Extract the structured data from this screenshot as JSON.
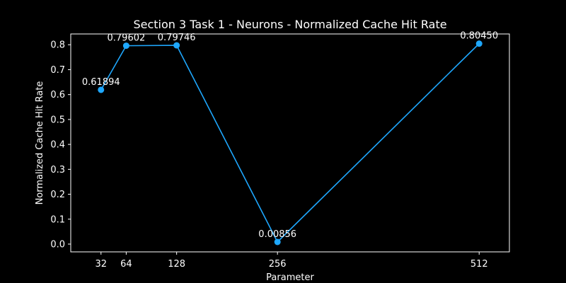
{
  "chart_data": {
    "type": "line",
    "title": "Section 3 Task 1 - Neurons - Normalized Cache Hit Rate",
    "xlabel": "Parameter",
    "ylabel": "Normalized Cache Hit Rate",
    "x": [
      32,
      64,
      128,
      256,
      512
    ],
    "xticks": [
      "32",
      "64",
      "128",
      "256",
      "512"
    ],
    "yticks": [
      "0.0",
      "0.1",
      "0.2",
      "0.3",
      "0.4",
      "0.5",
      "0.6",
      "0.7",
      "0.8"
    ],
    "xlim": [
      -6.4,
      550.4
    ],
    "ylim": [
      -0.0312,
      0.8432
    ],
    "series": [
      {
        "values": [
          0.61894,
          0.79602,
          0.79746,
          0.00856,
          0.8045
        ],
        "labels": [
          "0.61894",
          "0.79602",
          "0.79746",
          "0.00856",
          "0.80450"
        ]
      }
    ],
    "grid": false,
    "legend": "none",
    "colors": {
      "background": "#000000",
      "line": "#1ea7fd",
      "text": "#ffffff",
      "axes": "#ffffff"
    }
  }
}
